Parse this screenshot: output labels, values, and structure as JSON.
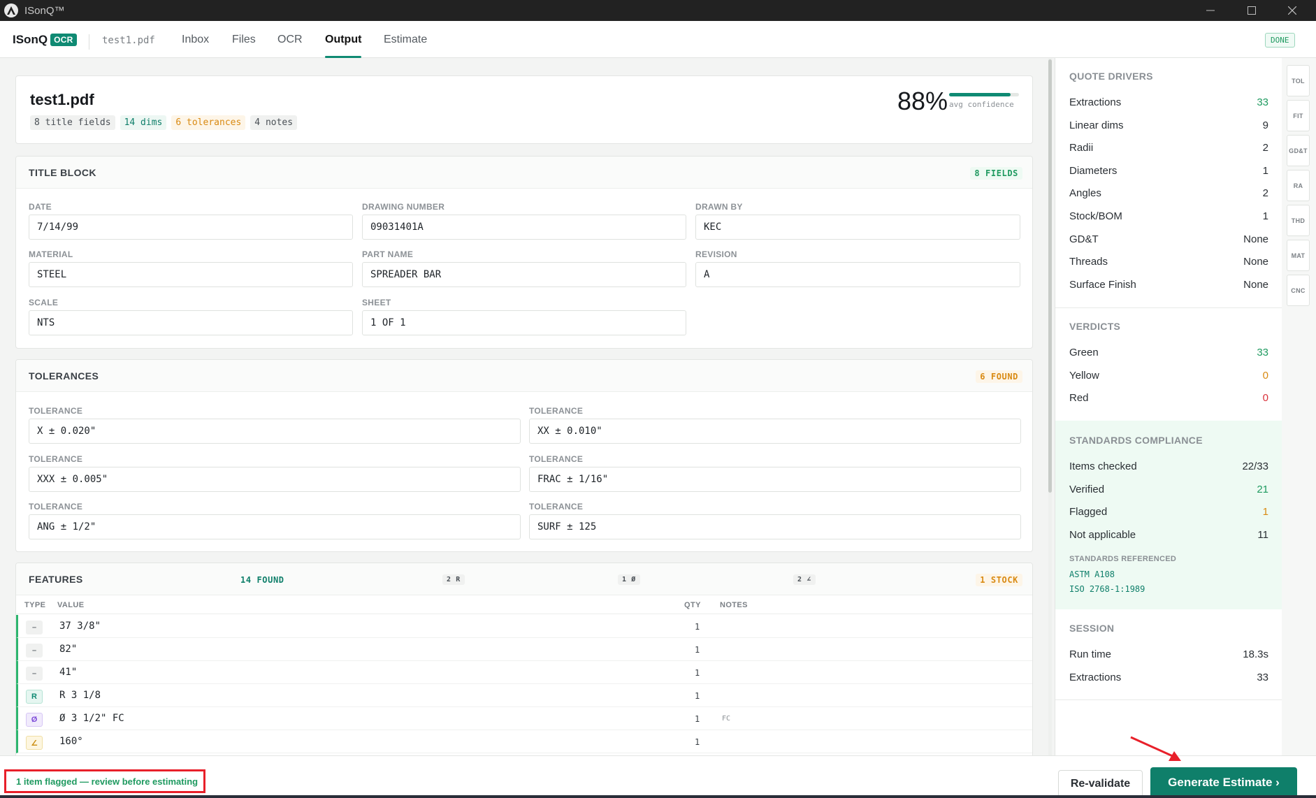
{
  "window": {
    "title": "ISonQ™"
  },
  "nav": {
    "brand": "ISonQ",
    "brand_badge": "OCR",
    "file": "test1.pdf",
    "tabs": [
      "Inbox",
      "Files",
      "OCR",
      "Output",
      "Estimate"
    ],
    "active_tab": "Output",
    "status": "DONE"
  },
  "summary": {
    "filename": "test1.pdf",
    "chips": [
      "8 title fields",
      "14 dims",
      "6 tolerances",
      "4 notes"
    ],
    "confidence": "88%",
    "confidence_value": 0.88,
    "confidence_label": "avg confidence"
  },
  "title_block": {
    "title": "TITLE BLOCK",
    "badge": "8 FIELDS",
    "fields": [
      {
        "label": "DATE",
        "value": "7/14/99"
      },
      {
        "label": "DRAWING NUMBER",
        "value": "09031401A"
      },
      {
        "label": "DRAWN BY",
        "value": "KEC"
      },
      {
        "label": "MATERIAL",
        "value": "STEEL"
      },
      {
        "label": "PART NAME",
        "value": "SPREADER BAR"
      },
      {
        "label": "REVISION",
        "value": "A"
      },
      {
        "label": "SCALE",
        "value": "NTS"
      },
      {
        "label": "SHEET",
        "value": "1 OF 1"
      }
    ]
  },
  "tolerances": {
    "title": "TOLERANCES",
    "badge": "6 FOUND",
    "items": [
      {
        "label": "TOLERANCE",
        "value": "X ± 0.020\""
      },
      {
        "label": "TOLERANCE",
        "value": "XX ± 0.010\""
      },
      {
        "label": "TOLERANCE",
        "value": "XXX ± 0.005\""
      },
      {
        "label": "TOLERANCE",
        "value": "FRAC ± 1/16\""
      },
      {
        "label": "TOLERANCE",
        "value": "ANG ± 1/2\""
      },
      {
        "label": "TOLERANCE",
        "value": "SURF ± 125"
      }
    ]
  },
  "features": {
    "title": "FEATURES",
    "badges": [
      "14 FOUND",
      "2 R",
      "1 Ø",
      "2 ∠",
      "1 STOCK"
    ],
    "columns": [
      "TYPE",
      "VALUE",
      "QTY",
      "NOTES"
    ],
    "rows": [
      {
        "type": "–",
        "kind": "linear",
        "value": "37 3/8\"",
        "qty": "1",
        "notes": ""
      },
      {
        "type": "–",
        "kind": "linear",
        "value": "82\"",
        "qty": "1",
        "notes": ""
      },
      {
        "type": "–",
        "kind": "linear",
        "value": "41\"",
        "qty": "1",
        "notes": ""
      },
      {
        "type": "R",
        "kind": "radius",
        "value": "R 3 1/8",
        "qty": "1",
        "notes": ""
      },
      {
        "type": "Ø",
        "kind": "diameter",
        "value": "Ø 3 1/2\" FC",
        "qty": "1",
        "notes": "FC"
      },
      {
        "type": "∠",
        "kind": "angle",
        "value": "160°",
        "qty": "1",
        "notes": ""
      }
    ]
  },
  "sidebar": {
    "quote_drivers": {
      "title": "QUOTE DRIVERS",
      "rows": [
        {
          "label": "Extractions",
          "value": "33",
          "color": "#1f9a60"
        },
        {
          "label": "Linear dims",
          "value": "9",
          "color": "#2a2f34"
        },
        {
          "label": "Radii",
          "value": "2",
          "color": "#2a2f34"
        },
        {
          "label": "Diameters",
          "value": "1",
          "color": "#2a2f34"
        },
        {
          "label": "Angles",
          "value": "2",
          "color": "#2a2f34"
        },
        {
          "label": "Stock/BOM",
          "value": "1",
          "color": "#2a2f34"
        },
        {
          "label": "GD&T",
          "value": "None",
          "color": "#2a2f34"
        },
        {
          "label": "Threads",
          "value": "None",
          "color": "#2a2f34"
        },
        {
          "label": "Surface Finish",
          "value": "None",
          "color": "#2a2f34"
        }
      ]
    },
    "verdicts": {
      "title": "VERDICTS",
      "rows": [
        {
          "label": "Green",
          "value": "33",
          "color": "#1f9a60"
        },
        {
          "label": "Yellow",
          "value": "0",
          "color": "#d98a12"
        },
        {
          "label": "Red",
          "value": "0",
          "color": "#d9313a"
        }
      ]
    },
    "compliance": {
      "title": "STANDARDS COMPLIANCE",
      "rows": [
        {
          "label": "Items checked",
          "value": "22/33",
          "color": "#2a2f34"
        },
        {
          "label": "Verified",
          "value": "21",
          "color": "#1f9a60"
        },
        {
          "label": "Flagged",
          "value": "1",
          "color": "#d98a12"
        },
        {
          "label": "Not applicable",
          "value": "11",
          "color": "#2a2f34"
        }
      ],
      "referenced_title": "STANDARDS REFERENCED",
      "referenced": [
        "ASTM A108",
        "ISO 2768-1:1989"
      ]
    },
    "session": {
      "title": "SESSION",
      "rows": [
        {
          "label": "Run time",
          "value": "18.3s",
          "color": "#2a2f34"
        },
        {
          "label": "Extractions",
          "value": "33",
          "color": "#2a2f34"
        }
      ]
    }
  },
  "vtabs": [
    "TOL",
    "FIT",
    "GD&T",
    "RA",
    "THD",
    "MAT",
    "CNC"
  ],
  "footer": {
    "message": "1 item flagged — review before estimating",
    "revalidate": "Re-validate",
    "generate": "Generate Estimate ›"
  }
}
